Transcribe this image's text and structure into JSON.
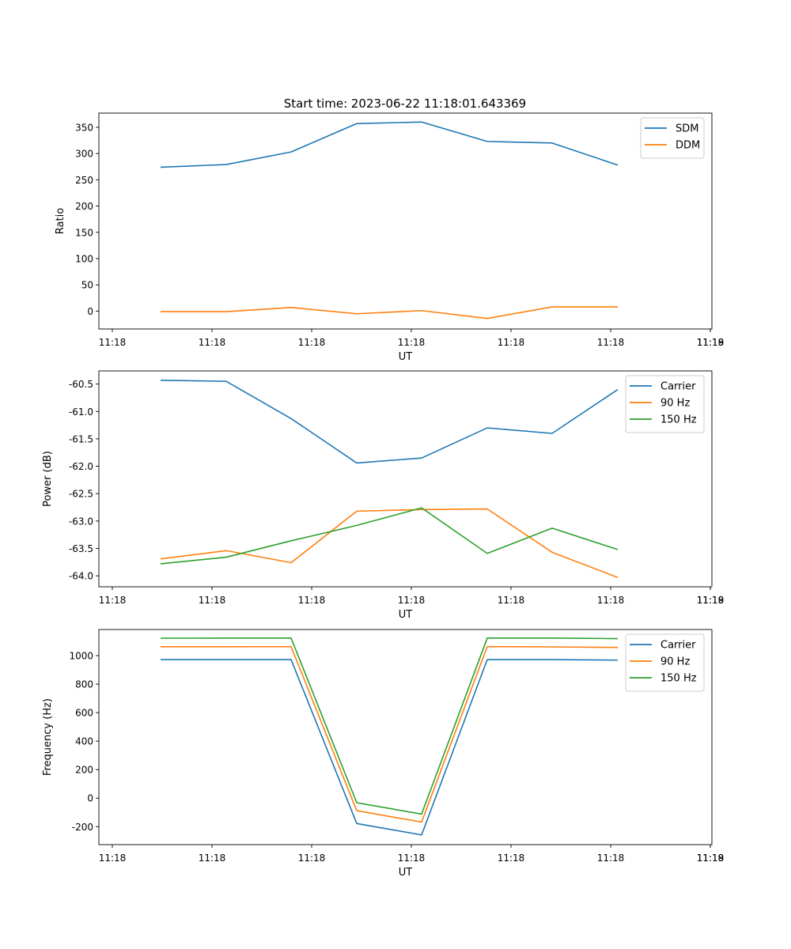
{
  "figure": {
    "title": "Start time: 2023-06-22 11:18:01.643369"
  },
  "colors": {
    "blue": "#1f77b4",
    "orange": "#ff7f0e",
    "green": "#2ca02c"
  },
  "chart_data": [
    {
      "type": "line",
      "title": "Start time: 2023-06-22 11:18:01.643369",
      "xlabel": "UT",
      "ylabel": "Ratio",
      "x_ticks": [
        "11:18",
        "11:18",
        "11:18",
        "11:18",
        "11:18",
        "11:18",
        "11:18",
        "11:19"
      ],
      "y_ticks": [
        "0",
        "50",
        "100",
        "150",
        "200",
        "250",
        "300",
        "350"
      ],
      "ylim": [
        -34,
        377
      ],
      "legend": "top-right",
      "grid": false,
      "series": [
        {
          "name": "SDM",
          "color": "#1f77b4",
          "values": [
            274,
            279,
            303,
            357,
            360,
            323,
            320,
            278
          ]
        },
        {
          "name": "DDM",
          "color": "#ff7f0e",
          "values": [
            -1,
            -1,
            7,
            -5,
            1,
            -14,
            8,
            8
          ]
        }
      ]
    },
    {
      "type": "line",
      "xlabel": "UT",
      "ylabel": "Power (dB)",
      "x_ticks": [
        "11:18",
        "11:18",
        "11:18",
        "11:18",
        "11:18",
        "11:18",
        "11:18",
        "11:19"
      ],
      "y_ticks": [
        "-64.0",
        "-63.5",
        "-63.0",
        "-62.5",
        "-62.0",
        "-61.5",
        "-61.0",
        "-60.5"
      ],
      "ylim": [
        -64.2,
        -60.26
      ],
      "legend": "top-right",
      "grid": false,
      "series": [
        {
          "name": "Carrier",
          "color": "#1f77b4",
          "values": [
            -60.43,
            -60.45,
            -61.13,
            -61.94,
            -61.85,
            -61.3,
            -61.4,
            -60.6
          ]
        },
        {
          "name": "90 Hz",
          "color": "#ff7f0e",
          "values": [
            -63.69,
            -63.54,
            -63.76,
            -62.82,
            -62.79,
            -62.78,
            -63.57,
            -64.03
          ]
        },
        {
          "name": "150 Hz",
          "color": "#2ca02c",
          "values": [
            -63.78,
            -63.66,
            -63.36,
            -63.08,
            -62.76,
            -63.59,
            -63.13,
            -63.52
          ]
        }
      ]
    },
    {
      "type": "line",
      "xlabel": "UT",
      "ylabel": "Frequency (Hz)",
      "x_ticks": [
        "11:18",
        "11:18",
        "11:18",
        "11:18",
        "11:18",
        "11:18",
        "11:18",
        "11:19"
      ],
      "y_ticks": [
        "-200",
        "0",
        "200",
        "400",
        "600",
        "800",
        "1000"
      ],
      "ylim": [
        -326,
        1183
      ],
      "legend": "top-right",
      "grid": false,
      "series": [
        {
          "name": "Carrier",
          "color": "#1f77b4",
          "values": [
            972,
            972,
            972,
            -178,
            -258,
            972,
            972,
            968
          ]
        },
        {
          "name": "90 Hz",
          "color": "#ff7f0e",
          "values": [
            1062,
            1062,
            1063,
            -88,
            -168,
            1063,
            1061,
            1057
          ]
        },
        {
          "name": "150 Hz",
          "color": "#2ca02c",
          "values": [
            1122,
            1123,
            1123,
            -32,
            -112,
            1123,
            1123,
            1119
          ]
        }
      ]
    }
  ]
}
